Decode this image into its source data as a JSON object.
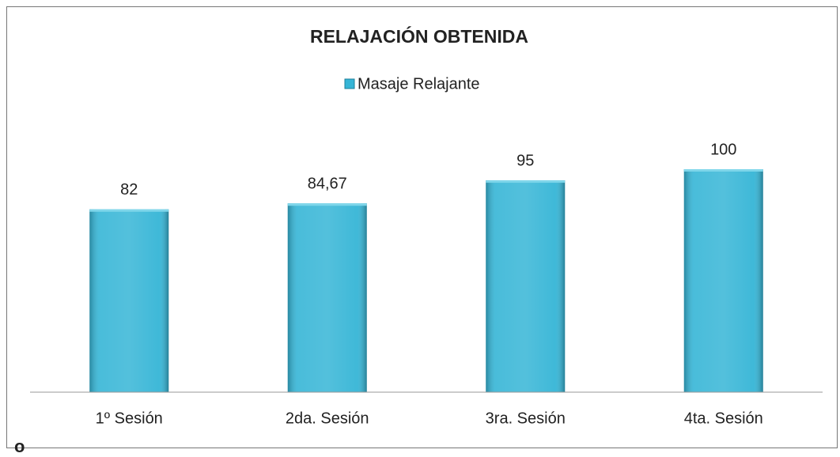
{
  "chart_data": {
    "type": "bar",
    "title": "RELAJACIÓN OBTENIDA",
    "categories": [
      "1º Sesión",
      "2da. Sesión",
      "3ra. Sesión",
      "4ta. Sesión"
    ],
    "series": [
      {
        "name": "Masaje Relajante",
        "color": "#35b5d6",
        "values": [
          82,
          84.67,
          95,
          100
        ],
        "value_labels": [
          "82",
          "84,67",
          "95",
          "100"
        ]
      }
    ],
    "ylim": [
      0,
      100
    ],
    "legend": "top"
  },
  "footer_text": "o"
}
